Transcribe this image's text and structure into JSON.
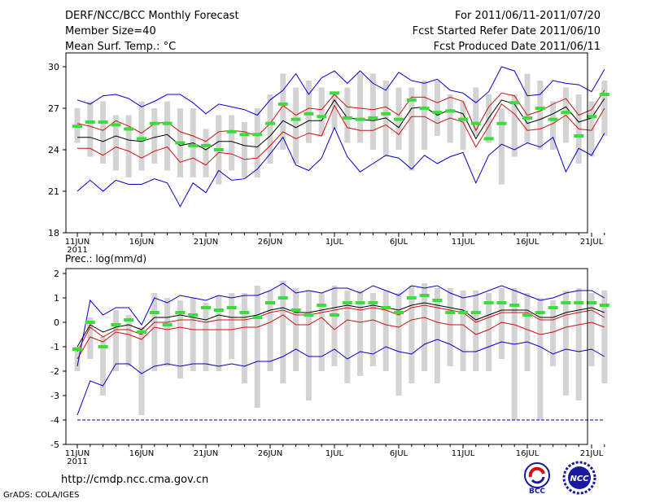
{
  "header": {
    "title": "DERF/NCC/BCC Monthly Forecast",
    "member_size": "Member Size=40",
    "variable1": "Mean Surf. Temp.: °C",
    "period": "For 2011/06/11-2011/07/20",
    "start_date": "Fcst Started Refer Date 2011/06/10",
    "produced_date": "Fcst Produced Date 2011/06/11"
  },
  "footer": {
    "url": "http://cmdp.ncc.cma.gov.cn",
    "grads": "GrADS: COLA/IGES",
    "logo1": "BCC",
    "logo2": "NCC"
  },
  "colors": {
    "box": "#d3d3d3",
    "green": "#3ddc3d",
    "mean": "#000000",
    "red": "#d01010",
    "blue": "#0000cc"
  },
  "chart_data": [
    {
      "type": "line",
      "title": "Mean Surf. Temp.: °C",
      "ylabel": "°C",
      "ylim": [
        18,
        31
      ],
      "yticks": [
        18,
        21,
        24,
        27,
        30
      ],
      "xticks": [
        "11JUN",
        "16JUN",
        "21JUN",
        "26JUN",
        "1JUL",
        "6JUL",
        "11JUL",
        "16JUL",
        "21JUL"
      ],
      "xtick_year": "2011",
      "box_low": [
        24.5,
        23.5,
        23.0,
        22.5,
        22.0,
        22.5,
        23.0,
        22.5,
        22.0,
        22.0,
        22.0,
        21.5,
        22.5,
        22.0,
        22.0,
        23.0,
        24.0,
        23.0,
        24.5,
        25.0,
        25.5,
        24.5,
        24.5,
        24.0,
        23.5,
        24.0,
        22.5,
        24.0,
        25.0,
        24.5,
        24.0,
        25.0,
        24.5,
        21.5,
        23.5,
        24.5,
        24.0,
        24.0,
        24.5,
        23.0,
        23.5,
        25.0
      ],
      "box_high": [
        27.0,
        27.5,
        27.5,
        26.5,
        26.5,
        27.5,
        27.0,
        27.5,
        27.0,
        27.0,
        25.5,
        26.5,
        26.5,
        26.0,
        27.0,
        28.0,
        29.5,
        28.5,
        29.0,
        28.5,
        28.0,
        28.5,
        29.5,
        29.5,
        29.0,
        28.5,
        28.5,
        29.0,
        29.0,
        28.0,
        27.5,
        28.5,
        28.0,
        27.0,
        28.0,
        29.5,
        29.0,
        27.5,
        28.5,
        28.0,
        27.5,
        29.0
      ],
      "green": [
        25.7,
        26.0,
        26.0,
        25.8,
        25.5,
        24.8,
        25.9,
        25.9,
        24.5,
        24.3,
        24.3,
        24.0,
        25.3,
        25.1,
        25.1,
        25.9,
        27.3,
        26.2,
        26.6,
        26.4,
        28.1,
        26.3,
        26.2,
        26.3,
        26.6,
        26.2,
        27.6,
        27.0,
        26.7,
        26.8,
        26.2,
        25.9,
        24.8,
        25.9,
        27.4,
        26.3,
        27.0,
        26.2,
        26.7,
        25.0,
        26.4,
        28.0
      ],
      "series": [
        {
          "name": "mean",
          "values": [
            24.9,
            24.9,
            24.6,
            25.0,
            24.7,
            24.6,
            24.9,
            25.1,
            24.3,
            24.5,
            24.0,
            24.6,
            24.6,
            24.3,
            24.2,
            25.0,
            26.1,
            25.6,
            26.1,
            26.1,
            27.6,
            26.3,
            26.2,
            26.1,
            26.3,
            25.6,
            27.0,
            27.1,
            26.5,
            26.9,
            26.6,
            24.8,
            26.3,
            27.6,
            27.3,
            25.9,
            26.2,
            26.6,
            27.1,
            26.0,
            26.3,
            27.7
          ]
        },
        {
          "name": "upper_red",
          "values": [
            25.9,
            25.7,
            25.4,
            26.1,
            25.7,
            25.2,
            25.9,
            26.0,
            25.3,
            25.0,
            24.6,
            25.3,
            25.4,
            25.3,
            25.0,
            25.9,
            27.2,
            26.5,
            27.0,
            26.9,
            28.0,
            27.1,
            27.0,
            26.9,
            27.1,
            26.5,
            27.8,
            27.8,
            27.4,
            27.8,
            27.5,
            25.4,
            27.1,
            28.1,
            27.9,
            26.5,
            26.8,
            27.3,
            27.7,
            26.5,
            26.9,
            28.3
          ]
        },
        {
          "name": "lower_red",
          "values": [
            24.1,
            24.1,
            23.6,
            24.2,
            23.9,
            23.4,
            23.9,
            24.2,
            23.1,
            23.4,
            22.9,
            23.8,
            23.7,
            23.3,
            23.4,
            24.3,
            25.3,
            24.8,
            25.2,
            25.0,
            27.2,
            25.6,
            25.4,
            25.4,
            25.8,
            25.1,
            26.4,
            26.4,
            25.9,
            26.3,
            26.0,
            24.2,
            25.7,
            27.3,
            26.6,
            25.4,
            25.5,
            25.9,
            26.5,
            25.5,
            25.4,
            27.0
          ]
        },
        {
          "name": "upper_blue",
          "values": [
            27.6,
            27.3,
            27.9,
            28.0,
            27.7,
            27.1,
            27.5,
            28.0,
            28.0,
            27.4,
            26.6,
            27.3,
            27.1,
            26.9,
            26.5,
            27.6,
            28.3,
            29.5,
            28.0,
            29.2,
            29.7,
            28.8,
            29.7,
            28.8,
            28.3,
            29.6,
            29.0,
            28.8,
            29.1,
            28.3,
            28.1,
            27.4,
            28.2,
            30.0,
            29.7,
            27.9,
            28.0,
            29.0,
            28.8,
            28.7,
            28.2,
            29.8
          ]
        },
        {
          "name": "lower_blue",
          "values": [
            21.0,
            21.8,
            21.0,
            21.8,
            21.5,
            21.5,
            21.9,
            21.6,
            19.9,
            21.6,
            20.9,
            22.5,
            21.8,
            21.9,
            22.6,
            23.7,
            24.9,
            22.9,
            22.5,
            23.4,
            25.6,
            23.5,
            22.4,
            23.0,
            23.6,
            23.4,
            22.6,
            23.6,
            23.0,
            23.5,
            23.8,
            21.6,
            23.6,
            24.4,
            24.0,
            24.5,
            24.2,
            24.9,
            22.4,
            24.1,
            23.6,
            25.2
          ]
        }
      ]
    },
    {
      "type": "line",
      "title": "Prec.: log(mm/d)",
      "ylabel": "log(mm/d)",
      "ylim": [
        -5,
        2.2
      ],
      "yticks": [
        -5,
        -4,
        -3,
        -2,
        -1,
        0,
        1,
        2
      ],
      "xticks": [
        "11JUN",
        "16JUN",
        "21JUN",
        "26JUN",
        "1JUL",
        "6JUL",
        "11JUL",
        "16JUL",
        "21JUL"
      ],
      "xtick_year": "2011",
      "box_low": [
        -2.0,
        -1.5,
        -3.0,
        -2.0,
        -1.8,
        -3.8,
        -2.0,
        -1.8,
        -2.3,
        -2.0,
        -2.0,
        -2.0,
        -1.5,
        -2.5,
        -3.5,
        -2.0,
        -2.5,
        -2.0,
        -3.2,
        -2.0,
        -1.8,
        -2.5,
        -2.2,
        -1.8,
        -2.0,
        -3.0,
        -2.5,
        -2.0,
        -2.5,
        -1.8,
        -2.0,
        -2.0,
        -2.0,
        -1.5,
        -4.0,
        -2.0,
        -4.0,
        -1.8,
        -3.0,
        -3.2,
        -1.8,
        -2.5
      ],
      "box_high": [
        -1.0,
        0.2,
        -0.6,
        0.5,
        0.3,
        -0.2,
        1.2,
        1.0,
        0.9,
        1.0,
        0.8,
        1.1,
        1.2,
        1.2,
        1.5,
        1.3,
        1.7,
        1.4,
        1.3,
        1.2,
        1.5,
        1.3,
        1.3,
        1.2,
        1.3,
        1.2,
        1.5,
        1.6,
        1.4,
        1.4,
        1.3,
        1.3,
        1.2,
        1.4,
        1.4,
        1.2,
        1.0,
        0.9,
        1.3,
        1.4,
        1.2,
        1.3
      ],
      "green": [
        -1.1,
        0.0,
        -1.0,
        -0.1,
        0.1,
        -0.4,
        0.4,
        -0.1,
        0.4,
        0.3,
        0.6,
        0.5,
        0.6,
        0.4,
        0.2,
        0.8,
        1.0,
        0.5,
        0.3,
        0.7,
        0.3,
        0.8,
        0.8,
        0.8,
        0.6,
        0.4,
        1.0,
        1.1,
        0.9,
        0.4,
        0.4,
        0.4,
        0.8,
        0.8,
        0.7,
        0.3,
        0.4,
        0.6,
        0.8,
        0.8,
        0.8,
        0.7
      ],
      "series": [
        {
          "name": "mean",
          "values": [
            -1.0,
            -0.1,
            -0.4,
            -0.2,
            -0.1,
            -0.3,
            0.2,
            0.2,
            0.3,
            0.2,
            0.1,
            0.3,
            0.2,
            0.2,
            0.3,
            0.5,
            0.6,
            0.4,
            0.4,
            0.5,
            0.6,
            0.7,
            0.6,
            0.7,
            0.6,
            0.5,
            0.7,
            0.8,
            0.7,
            0.6,
            0.5,
            0.1,
            0.3,
            0.5,
            0.5,
            0.5,
            0.2,
            0.2,
            0.4,
            0.5,
            0.6,
            0.4
          ]
        },
        {
          "name": "upper_red",
          "values": [
            -1.2,
            -0.2,
            -0.6,
            -0.3,
            -0.3,
            -0.5,
            0.0,
            0.0,
            0.1,
            0.1,
            0.0,
            0.1,
            0.1,
            0.1,
            0.2,
            0.4,
            0.5,
            0.3,
            0.3,
            0.4,
            0.5,
            0.6,
            0.5,
            0.6,
            0.5,
            0.3,
            0.6,
            0.7,
            0.6,
            0.5,
            0.4,
            0.0,
            0.2,
            0.4,
            0.4,
            0.4,
            0.1,
            0.1,
            0.3,
            0.4,
            0.5,
            0.2
          ]
        },
        {
          "name": "lower_red",
          "values": [
            -1.5,
            -0.6,
            -0.8,
            -0.4,
            -0.5,
            -0.7,
            -0.2,
            -0.3,
            -0.2,
            -0.3,
            -0.3,
            -0.3,
            -0.3,
            -0.2,
            -0.2,
            0.0,
            0.3,
            -0.1,
            -0.1,
            0.2,
            -0.3,
            0.1,
            0.0,
            0.1,
            -0.1,
            -0.2,
            0.1,
            0.2,
            0.0,
            -0.1,
            -0.1,
            -0.5,
            -0.3,
            0.0,
            -0.1,
            -0.3,
            -0.5,
            -0.4,
            -0.2,
            -0.1,
            0.0,
            -0.2
          ]
        },
        {
          "name": "upper_blue",
          "values": [
            -1.8,
            0.9,
            0.3,
            0.6,
            0.6,
            -0.1,
            1.0,
            0.8,
            1.1,
            1.0,
            0.9,
            1.1,
            1.0,
            1.1,
            1.1,
            1.3,
            1.6,
            1.2,
            1.3,
            1.2,
            1.4,
            1.4,
            1.2,
            1.5,
            1.3,
            1.1,
            1.5,
            1.4,
            1.5,
            1.2,
            1.0,
            1.1,
            1.3,
            1.5,
            1.3,
            1.1,
            0.9,
            1.0,
            1.2,
            1.3,
            1.3,
            1.0
          ]
        },
        {
          "name": "lower_blue",
          "values": [
            -3.8,
            -2.4,
            -2.6,
            -1.7,
            -1.7,
            -2.1,
            -1.8,
            -1.7,
            -1.8,
            -1.7,
            -1.7,
            -1.8,
            -1.7,
            -1.8,
            -1.6,
            -1.6,
            -1.4,
            -1.1,
            -1.4,
            -1.4,
            -1.1,
            -1.5,
            -1.2,
            -1.3,
            -1.0,
            -1.2,
            -1.3,
            -0.9,
            -0.7,
            -0.9,
            -1.2,
            -1.2,
            -1.0,
            -0.8,
            -0.9,
            -0.8,
            -1.0,
            -1.3,
            -1.1,
            -1.2,
            -1.1,
            -1.4
          ]
        },
        {
          "name": "floor",
          "values": [
            -4.0,
            -4.0
          ]
        }
      ]
    }
  ]
}
